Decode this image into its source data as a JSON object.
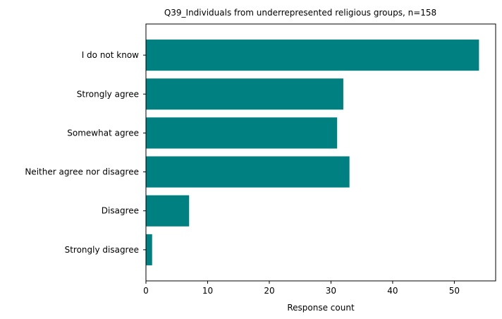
{
  "chart_data": {
    "type": "bar",
    "orientation": "horizontal",
    "title": "Q39_Individuals from underrepresented religious groups, n=158",
    "xlabel": "Response count",
    "ylabel": "",
    "categories": [
      "I do not know",
      "Strongly agree",
      "Somewhat agree",
      "Neither agree nor disagree",
      "Disagree",
      "Strongly disagree"
    ],
    "values": [
      54,
      32,
      31,
      33,
      7,
      1
    ],
    "xlim": [
      0,
      56.7
    ],
    "xticks": [
      0,
      10,
      20,
      30,
      40,
      50
    ],
    "grid": false,
    "legend": "none",
    "bar_color": "#008080"
  }
}
